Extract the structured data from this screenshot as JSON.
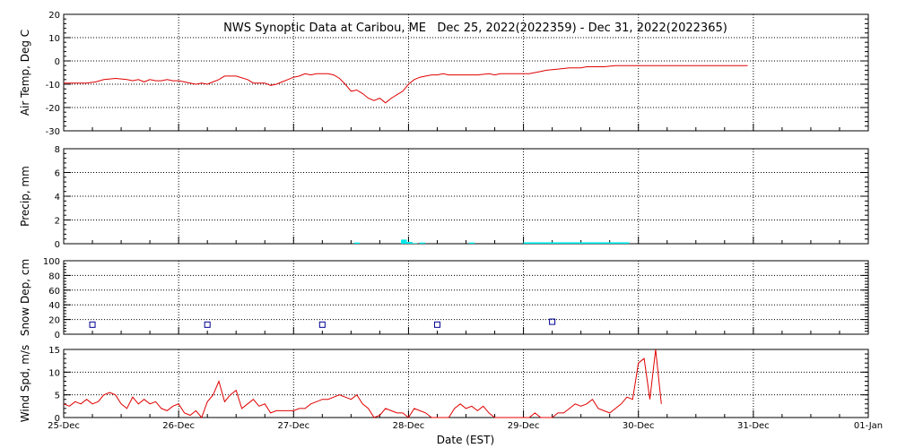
{
  "title": "NWS Synoptic Data at Caribou, ME   Dec 25, 2022(2022359) - Dec 31, 2022(2022365)",
  "xlabel": "Date (EST)",
  "x_ticks": [
    "25-Dec",
    "26-Dec",
    "27-Dec",
    "28-Dec",
    "29-Dec",
    "30-Dec",
    "31-Dec",
    "01-Jan"
  ],
  "colors": {
    "temp": "#e00000",
    "precip": "#00e8e8",
    "snow": "#000090",
    "wind": "#e00000",
    "grid": "#000000"
  },
  "chart_data": [
    {
      "type": "line",
      "name": "air-temp",
      "ylabel": "Air Temp, Deg C",
      "ylim": [
        -30,
        20
      ],
      "y_ticks": [
        -30,
        -20,
        -10,
        0,
        10,
        20
      ],
      "x_unit": "days since 25-Dec 00:00 EST",
      "grid": true,
      "x": [
        0,
        0.2,
        0.28,
        0.35,
        0.45,
        0.55,
        0.6,
        0.65,
        0.7,
        0.75,
        0.8,
        0.85,
        0.9,
        0.95,
        1.0,
        1.05,
        1.1,
        1.15,
        1.2,
        1.25,
        1.3,
        1.35,
        1.4,
        1.5,
        1.6,
        1.65,
        1.7,
        1.75,
        1.8,
        1.85,
        1.9,
        1.95,
        2.0,
        2.05,
        2.1,
        2.15,
        2.2,
        2.25,
        2.3,
        2.35,
        2.4,
        2.45,
        2.5,
        2.55,
        2.6,
        2.65,
        2.7,
        2.75,
        2.8,
        2.85,
        2.9,
        2.95,
        3.0,
        3.05,
        3.1,
        3.15,
        3.2,
        3.25,
        3.3,
        3.35,
        3.4,
        3.45,
        3.5,
        3.55,
        3.6,
        3.7,
        3.75,
        3.8,
        3.9,
        4.0,
        4.05,
        4.1,
        4.15,
        4.2,
        4.3,
        4.4,
        4.5,
        4.55,
        4.6,
        4.7,
        4.8,
        4.9,
        5.0,
        5.1,
        5.2,
        5.3,
        5.5,
        5.7,
        5.9,
        5.95
      ],
      "y": [
        -9.5,
        -9.5,
        -9,
        -8,
        -7.5,
        -8,
        -8.5,
        -8,
        -9,
        -8,
        -8.5,
        -8.5,
        -8,
        -8.5,
        -8.5,
        -9,
        -9.5,
        -10,
        -9.5,
        -10,
        -9,
        -8,
        -6.5,
        -6.5,
        -8,
        -9.5,
        -9.5,
        -9.5,
        -10.5,
        -10,
        -9,
        -8,
        -7,
        -6.5,
        -5.5,
        -6,
        -5.5,
        -5.5,
        -5.5,
        -6,
        -7.5,
        -10,
        -13,
        -12.5,
        -14,
        -16,
        -17,
        -16,
        -18,
        -16,
        -14.5,
        -13,
        -10,
        -8,
        -7,
        -6.5,
        -6,
        -6,
        -5.5,
        -6,
        -6,
        -6,
        -6,
        -6,
        -6,
        -5.5,
        -6,
        -5.5,
        -5.5,
        -5.5,
        -5.5,
        -5,
        -4.5,
        -4,
        -3.5,
        -3,
        -3,
        -2.5,
        -2.5,
        -2.5,
        -2,
        -2,
        -2,
        -2,
        -2,
        -2,
        -2,
        -2,
        -2,
        -2
      ]
    },
    {
      "type": "bar",
      "name": "precip",
      "ylabel": "Precip, mm",
      "ylim": [
        0,
        8
      ],
      "y_ticks": [
        0,
        2,
        4,
        6,
        8
      ],
      "x_unit": "days since 25-Dec 00:00 EST",
      "grid": true,
      "bar_width_days": 0.05,
      "x": [
        2.55,
        2.96,
        3.01,
        3.05,
        3.12,
        3.55
      ],
      "values": [
        0.1,
        0.35,
        0.15,
        0.05,
        0.1,
        0.1
      ],
      "continuous_span": {
        "x_start": 4.0,
        "x_end": 4.92,
        "value": 0.12
      }
    },
    {
      "type": "scatter",
      "name": "snow-depth",
      "ylabel": "Snow Dep, cm",
      "ylim": [
        0,
        100
      ],
      "y_ticks": [
        0,
        20,
        40,
        60,
        80,
        100
      ],
      "x_unit": "days since 25-Dec 00:00 EST",
      "grid": true,
      "x": [
        0.25,
        1.25,
        2.25,
        3.25,
        4.25
      ],
      "y": [
        13,
        13,
        13,
        13,
        17
      ]
    },
    {
      "type": "line",
      "name": "wind-speed",
      "ylabel": "Wind Spd, m/s",
      "ylim": [
        0,
        15
      ],
      "y_ticks": [
        0,
        5,
        10,
        15
      ],
      "x_unit": "days since 25-Dec 00:00 EST",
      "grid": true,
      "x": [
        0,
        0.05,
        0.1,
        0.15,
        0.2,
        0.25,
        0.3,
        0.35,
        0.4,
        0.45,
        0.5,
        0.55,
        0.6,
        0.65,
        0.7,
        0.75,
        0.8,
        0.85,
        0.9,
        0.95,
        1.0,
        1.05,
        1.1,
        1.15,
        1.2,
        1.25,
        1.3,
        1.35,
        1.4,
        1.45,
        1.5,
        1.55,
        1.6,
        1.65,
        1.7,
        1.75,
        1.8,
        1.85,
        1.9,
        1.95,
        2.0,
        2.05,
        2.1,
        2.15,
        2.2,
        2.25,
        2.3,
        2.35,
        2.4,
        2.45,
        2.5,
        2.55,
        2.6,
        2.65,
        2.7,
        2.75,
        2.8,
        2.85,
        2.9,
        2.95,
        3.0,
        3.05,
        3.1,
        3.15,
        3.2,
        3.25,
        3.3,
        3.35,
        3.4,
        3.45,
        3.5,
        3.55,
        3.6,
        3.65,
        3.7,
        3.75,
        3.8,
        3.85,
        3.9,
        3.95,
        4.0,
        4.05,
        4.1,
        4.15,
        4.2,
        4.25,
        4.3,
        4.35,
        4.4,
        4.45,
        4.5,
        4.55,
        4.6,
        4.65,
        4.7,
        4.75,
        4.8,
        4.85,
        4.9,
        4.95,
        5.0,
        5.05,
        5.1,
        5.15,
        5.2
      ],
      "y": [
        3,
        2.5,
        3.5,
        3,
        4,
        3,
        3.5,
        5,
        5.5,
        5,
        3,
        2,
        4.5,
        3,
        4,
        3,
        3.5,
        2,
        1.5,
        2.5,
        3,
        1,
        0.5,
        1.5,
        0,
        3.5,
        5,
        8,
        3.5,
        5,
        6,
        2,
        3,
        4,
        2.5,
        3,
        1,
        1.5,
        1.5,
        1.5,
        1.5,
        2,
        2,
        3,
        3.5,
        4,
        4,
        4.5,
        5,
        4.5,
        4,
        5,
        3,
        2,
        0,
        0.5,
        2,
        1.5,
        1,
        1,
        0,
        2,
        1.5,
        1,
        0,
        0,
        0,
        0,
        2,
        3,
        2,
        2.5,
        1.5,
        2.5,
        1,
        0,
        0,
        0,
        0,
        0,
        0,
        0,
        1,
        0,
        0,
        0,
        1,
        1,
        2,
        3,
        2.5,
        3,
        4,
        2,
        1.5,
        1,
        2,
        3,
        4.5,
        4,
        12,
        13,
        4,
        15,
        3
      ]
    }
  ]
}
